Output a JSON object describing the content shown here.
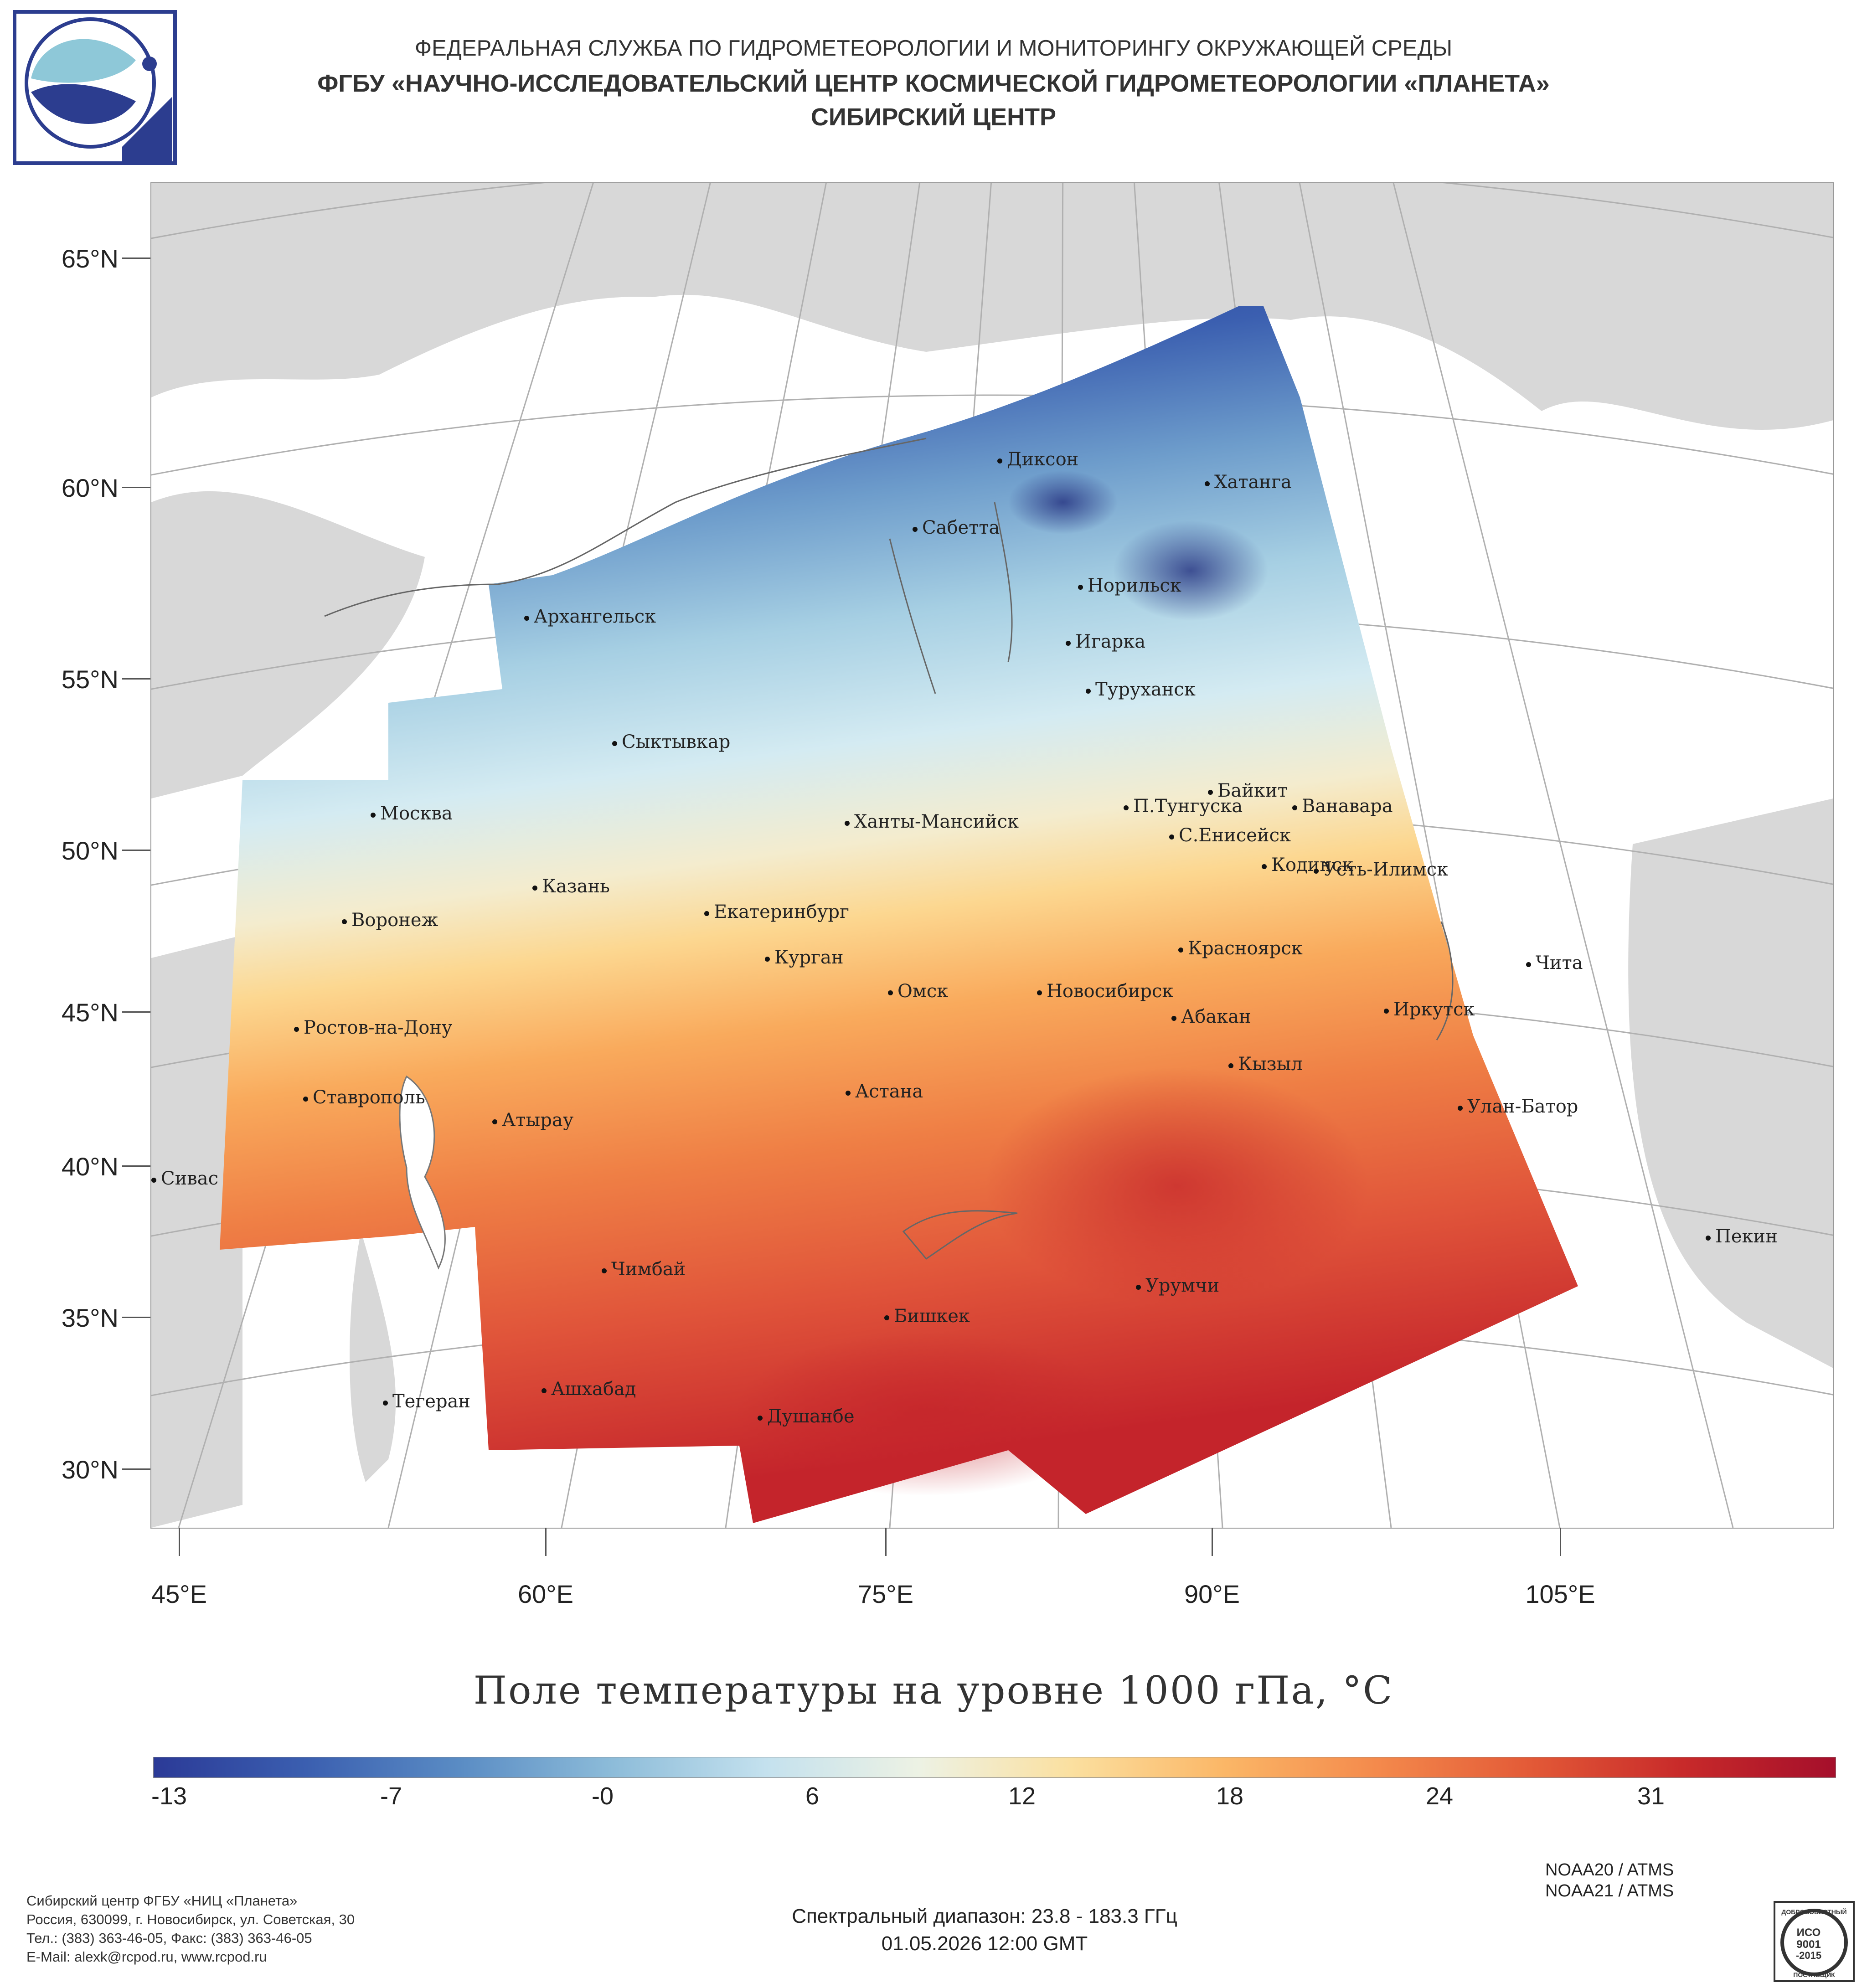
{
  "header": {
    "line1": "ФЕДЕРАЛЬНАЯ СЛУЖБА ПО ГИДРОМЕТЕОРОЛОГИИ И МОНИТОРИНГУ ОКРУЖАЮЩЕЙ СРЕДЫ",
    "line2": "ФГБУ «НАУЧНО-ИССЛЕДОВАТЕЛЬСКИЙ ЦЕНТР КОСМИЧЕСКОЙ ГИДРОМЕТЕОРОЛОГИИ «ПЛАНЕТА»",
    "line3": "СИБИРСКИЙ ЦЕНТР"
  },
  "map": {
    "lat_labels": [
      "65°N",
      "60°N",
      "55°N",
      "50°N",
      "45°N",
      "40°N",
      "35°N",
      "30°N"
    ],
    "lon_labels": [
      "45°E",
      "60°E",
      "75°E",
      "90°E",
      "105°E"
    ],
    "cities": [
      {
        "name": "Диксон"
      },
      {
        "name": "Хатанга"
      },
      {
        "name": "Сабетта"
      },
      {
        "name": "Норильск"
      },
      {
        "name": "Архангельск"
      },
      {
        "name": "Игарка"
      },
      {
        "name": "Туруханск"
      },
      {
        "name": "Сыктывкар"
      },
      {
        "name": "Байкит"
      },
      {
        "name": "П.Тунгуска"
      },
      {
        "name": "Ванавара"
      },
      {
        "name": "Москва"
      },
      {
        "name": "Ханты-Мансийск"
      },
      {
        "name": "С.Енисейск"
      },
      {
        "name": "Казань"
      },
      {
        "name": "Кодинск"
      },
      {
        "name": "Усть-Илимск"
      },
      {
        "name": "Екатеринбург"
      },
      {
        "name": "Воронеж"
      },
      {
        "name": "Красноярск"
      },
      {
        "name": "Курган"
      },
      {
        "name": "Чита"
      },
      {
        "name": "Омск"
      },
      {
        "name": "Новосибирск"
      },
      {
        "name": "Иркутск"
      },
      {
        "name": "Ростов-на-Дону"
      },
      {
        "name": "Абакан"
      },
      {
        "name": "Кызыл"
      },
      {
        "name": "Ставрополь"
      },
      {
        "name": "Астана"
      },
      {
        "name": "Улан-Батор"
      },
      {
        "name": "Атырау"
      },
      {
        "name": "Сивас"
      },
      {
        "name": "Пекин"
      },
      {
        "name": "Чимбай"
      },
      {
        "name": "Урумчи"
      },
      {
        "name": "Бишкек"
      },
      {
        "name": "Ашхабад"
      },
      {
        "name": "Тегеран"
      },
      {
        "name": "Душанбе"
      }
    ]
  },
  "legend": {
    "title": "Поле температуры на уровне 1000 гПа, °C",
    "tick_labels": [
      "-13",
      "-7",
      "-0",
      "6",
      "12",
      "18",
      "24",
      "31"
    ],
    "colors": [
      "#2b3a97",
      "#3b5fb0",
      "#5a8cc4",
      "#8dbcd9",
      "#c4e1ee",
      "#edf2e4",
      "#fbe0a0",
      "#fbb767",
      "#f48a4c",
      "#e35a37",
      "#c82a2a",
      "#a50f2b"
    ]
  },
  "footer": {
    "org_lines": [
      "Сибирский центр ФГБУ «НИЦ «Планета»",
      "Россия, 630099, г. Новосибирск, ул. Советская, 30",
      "Тел.: (383) 363-46-05, Факс: (383) 363-46-05",
      "E-Mail: alexk@rcpod.ru, www.rcpod.ru"
    ],
    "satellites": [
      "NOAA20 / ATMS",
      "NOAA21 / ATMS"
    ],
    "spectral": "Спектральный диапазон: 23.8 - 183.3 ГГц",
    "datetime": "01.05.2026 12:00 GMT",
    "iso_badge": {
      "top": "ДОБРОСОВЕСТНЫЙ",
      "mid1": "ИСО",
      "mid2": "9001",
      "mid3": "-2015",
      "bottom": "ПОСТАВЩИК"
    }
  }
}
